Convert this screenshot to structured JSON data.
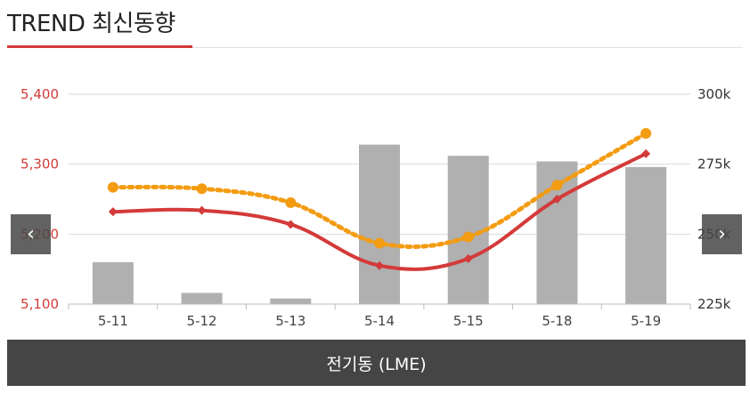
{
  "header": {
    "title": "TREND 최신동향"
  },
  "nav": {
    "prev_label": "‹",
    "next_label": "›"
  },
  "footer": {
    "label": "전기동 (LME)"
  },
  "colors": {
    "accent": "#d43a3a",
    "bar": "#b0b0b0",
    "dotted": "#f39c12",
    "footer_bg": "#454545"
  },
  "chart_data": {
    "type": "bar+line",
    "categories": [
      "5-11",
      "5-12",
      "5-13",
      "5-14",
      "5-15",
      "5-18",
      "5-19"
    ],
    "left_axis": {
      "ticks": [
        "5,100",
        "5,200",
        "5,300",
        "5,400"
      ],
      "tick_values": [
        5100,
        5200,
        5300,
        5400
      ],
      "ylim": [
        5100,
        5400
      ],
      "color": "#d43a3a"
    },
    "right_axis": {
      "ticks": [
        "225k",
        "250k",
        "275k",
        "300k"
      ],
      "tick_values": [
        225000,
        250000,
        275000,
        300000
      ],
      "ylim": [
        225000,
        300000
      ]
    },
    "bars": {
      "axis": "right",
      "values": [
        240000,
        229000,
        227000,
        282000,
        278000,
        276000,
        274000
      ]
    },
    "lines": [
      {
        "style": "solid",
        "marker": "diamond",
        "color": "#d43a3a",
        "axis": "left",
        "values": [
          5232,
          5234,
          5214,
          5155,
          5165,
          5250,
          5315
        ]
      },
      {
        "style": "dotted",
        "marker": "circle",
        "color": "#f39c12",
        "axis": "left",
        "values": [
          5267,
          5265,
          5245,
          5187,
          5196,
          5270,
          5344
        ]
      }
    ],
    "grid": true,
    "legend": "none"
  }
}
